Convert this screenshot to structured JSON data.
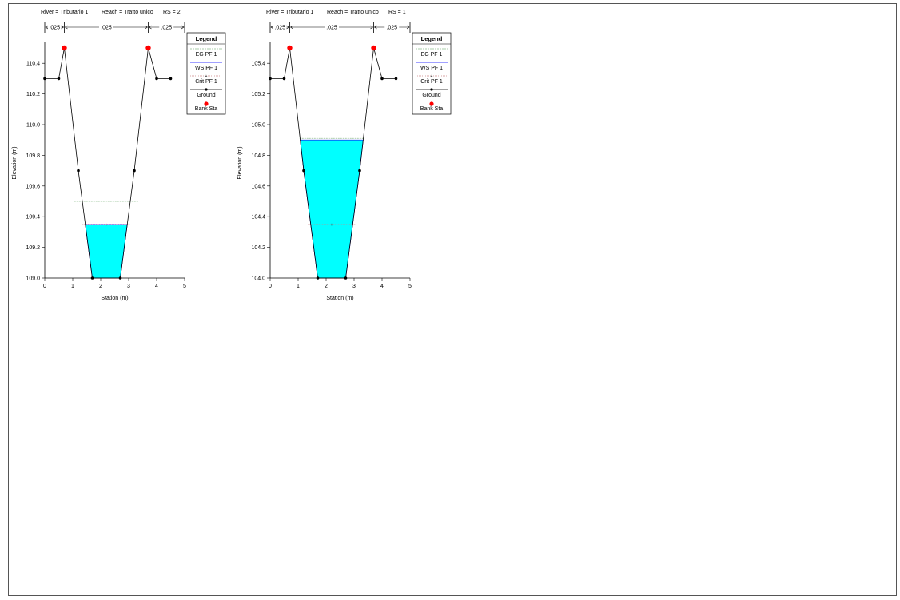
{
  "chart_data": [
    {
      "type": "cross-section",
      "header": {
        "river": "River = Tributario 1",
        "reach": "Reach = Tratto unico",
        "rs": "RS = 2"
      },
      "manning": [
        ".025",
        ".025",
        ".025"
      ],
      "xlabel": "Station (m)",
      "ylabel": "Elevation (m)",
      "xlim": [
        0,
        5
      ],
      "ylim": [
        109.0,
        110.5
      ],
      "xticks": [
        "0",
        "1",
        "2",
        "3",
        "4",
        "5"
      ],
      "yticks": [
        "109.0",
        "109.2",
        "109.4",
        "109.6",
        "109.8",
        "110.0",
        "110.2",
        "110.4"
      ],
      "ground": [
        [
          0,
          110.3
        ],
        [
          0.5,
          110.3
        ],
        [
          0.7,
          110.5
        ],
        [
          1.2,
          109.7
        ],
        [
          1.7,
          109.0
        ],
        [
          2.7,
          109.0
        ],
        [
          3.2,
          109.7
        ],
        [
          3.7,
          110.5
        ],
        [
          4.0,
          110.3
        ],
        [
          4.5,
          110.3
        ]
      ],
      "bank_stations": [
        [
          0.7,
          110.5
        ],
        [
          3.7,
          110.5
        ]
      ],
      "ws": 109.35,
      "eg": 109.5,
      "crit": 109.35,
      "legend": {
        "title": "Legend",
        "eg": "EG PF 1",
        "ws": "WS PF 1",
        "crit": "Crit PF 1",
        "ground": "Ground",
        "bank": "Bank Sta"
      },
      "colors": {
        "water": "#00ffff",
        "bank": "#ff0000",
        "eg": "#8fbc8f",
        "crit": "#ff0000",
        "ground": "#000000"
      }
    },
    {
      "type": "cross-section",
      "header": {
        "river": "River = Tributario 1",
        "reach": "Reach = Tratto unico",
        "rs": "RS = 1"
      },
      "manning": [
        ".025",
        ".025",
        ".025"
      ],
      "xlabel": "Station (m)",
      "ylabel": "Elevation (m)",
      "xlim": [
        0,
        5
      ],
      "ylim": [
        104.0,
        105.5
      ],
      "xticks": [
        "0",
        "1",
        "2",
        "3",
        "4",
        "5"
      ],
      "yticks": [
        "104.0",
        "104.2",
        "104.4",
        "104.6",
        "104.8",
        "105.0",
        "105.2",
        "105.4"
      ],
      "ground": [
        [
          0,
          105.3
        ],
        [
          0.5,
          105.3
        ],
        [
          0.7,
          105.5
        ],
        [
          1.2,
          104.7
        ],
        [
          1.7,
          104.0
        ],
        [
          2.7,
          104.0
        ],
        [
          3.2,
          104.7
        ],
        [
          3.7,
          105.5
        ],
        [
          4.0,
          105.3
        ],
        [
          4.5,
          105.3
        ]
      ],
      "bank_stations": [
        [
          0.7,
          105.5
        ],
        [
          3.7,
          105.5
        ]
      ],
      "ws": 104.9,
      "eg": 104.91,
      "crit": 104.35,
      "legend": {
        "title": "Legend",
        "eg": "EG PF 1",
        "ws": "WS PF 1",
        "crit": "Crit PF 1",
        "ground": "Ground",
        "bank": "Bank Sta"
      },
      "colors": {
        "water": "#00ffff",
        "bank": "#ff0000",
        "eg": "#8fbc8f",
        "crit": "#ff0000",
        "ground": "#000000"
      }
    }
  ]
}
